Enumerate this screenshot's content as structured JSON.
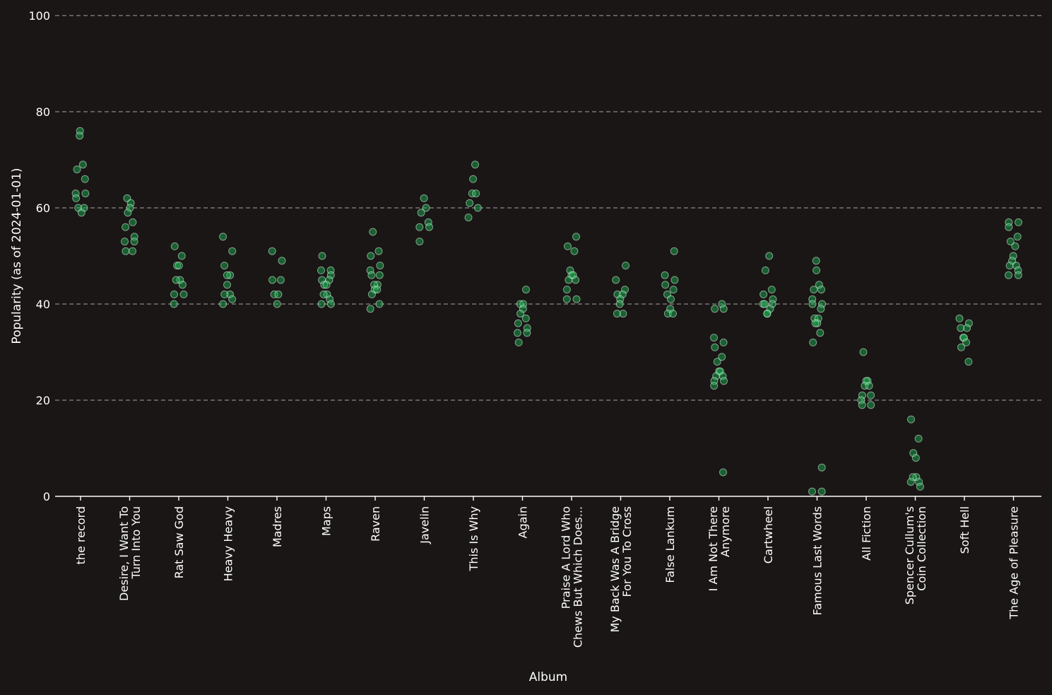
{
  "chart_data": {
    "type": "scatter",
    "subtype": "strip",
    "xlabel": "Album",
    "ylabel": "Popularity (as of 2024-01-01)",
    "ylim": [
      0,
      100
    ],
    "yticks": [
      0,
      20,
      40,
      60,
      80,
      100
    ],
    "grid": "horizontal-dashed",
    "colors": {
      "background": "#191615",
      "point": "#1db954",
      "text": "#ffffff",
      "grid": "#8a8686"
    },
    "categories": [
      [
        "the record"
      ],
      [
        "Desire, I Want To",
        "Turn Into You"
      ],
      [
        "Rat Saw God"
      ],
      [
        "Heavy Heavy"
      ],
      [
        "Madres"
      ],
      [
        "Maps"
      ],
      [
        "Raven"
      ],
      [
        "Javelin"
      ],
      [
        "This Is Why"
      ],
      [
        "Again"
      ],
      [
        "Praise A Lord Who",
        "Chews But Which Does..."
      ],
      [
        "My Back Was A Bridge",
        "For You To Cross"
      ],
      [
        "False Lankum"
      ],
      [
        "I Am Not There",
        "Anymore"
      ],
      [
        "Cartwheel"
      ],
      [
        "Famous Last Words"
      ],
      [
        "All Fiction"
      ],
      [
        "Spencer Cullum's",
        "Coin Collection"
      ],
      [
        "Soft Hell"
      ],
      [
        "The Age of Pleasure"
      ]
    ],
    "series": [
      {
        "values": [
          76,
          75,
          69,
          68,
          66,
          63,
          63,
          62,
          60,
          60,
          59
        ]
      },
      {
        "values": [
          62,
          61,
          60,
          59,
          57,
          56,
          54,
          53,
          53,
          51,
          51
        ]
      },
      {
        "values": [
          52,
          50,
          48,
          48,
          45,
          45,
          44,
          42,
          42,
          40
        ]
      },
      {
        "values": [
          54,
          51,
          48,
          46,
          46,
          44,
          42,
          42,
          41,
          40
        ]
      },
      {
        "values": [
          51,
          49,
          45,
          45,
          42,
          42,
          40
        ]
      },
      {
        "values": [
          50,
          47,
          47,
          46,
          45,
          45,
          44,
          44,
          42,
          42,
          41,
          40,
          40
        ]
      },
      {
        "values": [
          55,
          51,
          50,
          48,
          47,
          46,
          46,
          44,
          44,
          43,
          43,
          42,
          40,
          39
        ]
      },
      {
        "values": [
          62,
          60,
          59,
          57,
          56,
          56,
          53
        ]
      },
      {
        "values": [
          69,
          66,
          63,
          63,
          61,
          60,
          58
        ]
      },
      {
        "values": [
          43,
          40,
          40,
          39,
          38,
          37,
          36,
          35,
          34,
          34,
          32
        ]
      },
      {
        "values": [
          54,
          52,
          51,
          47,
          46,
          46,
          45,
          45,
          43,
          41,
          41
        ]
      },
      {
        "values": [
          48,
          45,
          43,
          42,
          42,
          41,
          40,
          38,
          38
        ]
      },
      {
        "values": [
          51,
          46,
          45,
          44,
          43,
          42,
          41,
          39,
          38,
          38
        ]
      },
      {
        "values": [
          40,
          39,
          39,
          33,
          32,
          31,
          29,
          28,
          26,
          26,
          25,
          25,
          24,
          24,
          23,
          5
        ]
      },
      {
        "values": [
          50,
          47,
          43,
          42,
          41,
          40,
          40,
          40,
          39,
          38,
          38
        ]
      },
      {
        "values": [
          49,
          47,
          44,
          43,
          43,
          41,
          40,
          40,
          39,
          37,
          37,
          36,
          36,
          34,
          32,
          6,
          1,
          1
        ]
      },
      {
        "values": [
          30,
          24,
          24,
          23,
          23,
          21,
          21,
          20,
          19,
          19
        ]
      },
      {
        "values": [
          16,
          12,
          9,
          8,
          4,
          4,
          3,
          3,
          2
        ]
      },
      {
        "values": [
          37,
          36,
          35,
          35,
          33,
          33,
          32,
          31,
          28
        ]
      },
      {
        "values": [
          57,
          57,
          56,
          54,
          53,
          52,
          50,
          49,
          48,
          48,
          47,
          46,
          46
        ]
      }
    ]
  }
}
